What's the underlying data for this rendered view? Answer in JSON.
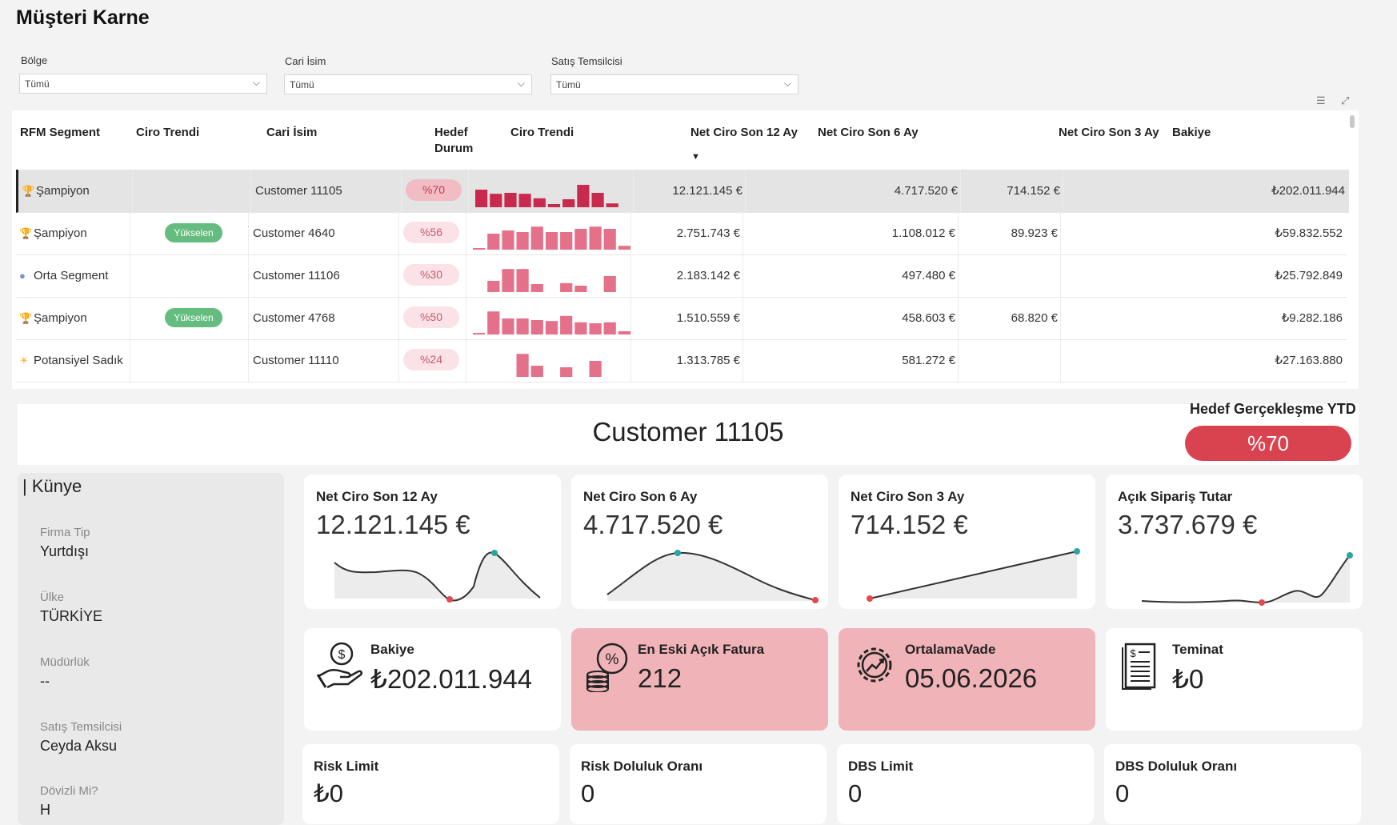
{
  "page": {
    "title": "Müşteri Karne"
  },
  "filters": [
    {
      "label": "Bölge",
      "value": "Tümü"
    },
    {
      "label": "Cari İsim",
      "value": "Tümü"
    },
    {
      "label": "Satış Temsilcisi",
      "value": "Tümü"
    }
  ],
  "table": {
    "headers": {
      "rfm": "RFM Segment",
      "trend1": "Ciro Trendi",
      "cari": "Cari İsim",
      "hedef1": "Hedef",
      "hedef2": "Durum",
      "trend2": "Ciro Trendi",
      "net12": "Net Ciro Son 12 Ay",
      "net6": "Net Ciro Son 6 Ay",
      "net3": "Net Ciro Son 3 Ay",
      "bakiye": "Bakiye"
    },
    "sort_icon": "sort-descending-icon",
    "rows": [
      {
        "segment": "Şampiyon",
        "segment_icon": "trophy-icon",
        "trend_badge": "",
        "cari": "Customer 11105",
        "hedef": "%70",
        "spark": [
          0.55,
          0.42,
          0.45,
          0.42,
          0.28,
          0.1,
          0.25,
          0.7,
          0.45,
          0.12
        ],
        "net12": "12.121.145 €",
        "net6": "4.717.520 €",
        "net3": "714.152 €",
        "bakiye": "₺202.011.944",
        "selected": true
      },
      {
        "segment": "Şampiyon",
        "segment_icon": "trophy-icon",
        "trend_badge": "Yükselen",
        "cari": "Customer 4640",
        "hedef": "%56",
        "spark": [
          0.05,
          0.5,
          0.6,
          0.55,
          0.72,
          0.55,
          0.55,
          0.65,
          0.72,
          0.65,
          0.12
        ],
        "net12": "2.751.743 €",
        "net6": "1.108.012 €",
        "net3": "89.923 €",
        "bakiye": "₺59.832.552",
        "selected": false
      },
      {
        "segment": "Orta Segment",
        "segment_icon": "circle-icon",
        "trend_badge": "",
        "cari": "Customer 11106",
        "hedef": "%30",
        "spark": [
          0,
          0.35,
          0.72,
          0.72,
          0.25,
          0,
          0.28,
          0.2,
          0,
          0.5
        ],
        "net12": "2.183.142 €",
        "net6": "497.480 €",
        "net3": "",
        "bakiye": "₺25.792.849",
        "selected": false
      },
      {
        "segment": "Şampiyon",
        "segment_icon": "trophy-icon",
        "trend_badge": "Yükselen",
        "cari": "Customer 4768",
        "hedef": "%50",
        "spark": [
          0.05,
          0.72,
          0.5,
          0.5,
          0.45,
          0.42,
          0.58,
          0.38,
          0.35,
          0.38,
          0.1
        ],
        "net12": "1.510.559 €",
        "net6": "458.603 €",
        "net3": "68.820 €",
        "bakiye": "₺9.282.186",
        "selected": false
      },
      {
        "segment": "Potansiyel Sadık",
        "segment_icon": "sun-icon",
        "trend_badge": "",
        "cari": "Customer 11110",
        "hedef": "%24",
        "spark": [
          0,
          0,
          0,
          0.72,
          0.35,
          0,
          0.3,
          0,
          0.5,
          0
        ],
        "net12": "1.313.785 €",
        "net6": "581.272 €",
        "net3": "",
        "bakiye": "₺27.163.880",
        "selected": false
      }
    ]
  },
  "detail": {
    "customer": "Customer 11105",
    "hedef_title": "Hedef Gerçekleşme YTD",
    "hedef_value": "%70",
    "kunye_title": "| Künye",
    "kunye": [
      {
        "label": "Firma Tip",
        "value": "Yurtdışı"
      },
      {
        "label": "Ülke",
        "value": "TÜRKİYE"
      },
      {
        "label": "Müdürlük",
        "value": "--"
      },
      {
        "label": "Satış Temsilcisi",
        "value": "Ceyda Aksu"
      },
      {
        "label": "Dövizli Mi?",
        "value": "H"
      }
    ],
    "kpis": [
      {
        "title": "Net Ciro Son 12 Ay",
        "value": "12.121.145 €"
      },
      {
        "title": "Net Ciro Son 6 Ay",
        "value": "4.717.520 €"
      },
      {
        "title": "Net Ciro Son 3 Ay",
        "value": "714.152 €"
      },
      {
        "title": "Açık Sipariş Tutar",
        "value": "3.737.679 €"
      }
    ],
    "icon_cards": [
      {
        "title": "Bakiye",
        "value": "₺202.011.944",
        "icon": "money-hand-icon"
      },
      {
        "title": "En Eski Açık Fatura",
        "value": "212",
        "icon": "percent-coins-icon"
      },
      {
        "title": "OrtalamaVade",
        "value": "05.06.2026",
        "icon": "gear-chart-icon"
      },
      {
        "title": "Teminat",
        "value": "₺0",
        "icon": "document-icon"
      }
    ],
    "limit_cards": [
      {
        "title": "Risk Limit",
        "value": "₺0"
      },
      {
        "title": "Risk Doluluk Oranı",
        "value": "0"
      },
      {
        "title": "DBS Limit",
        "value": "0"
      },
      {
        "title": "DBS Doluluk Oranı",
        "value": "0"
      }
    ]
  },
  "colors": {
    "accent_red": "#d9424f",
    "spark_selected": "#c9294c",
    "spark_normal": "#e5708a",
    "badge_green": "#64bd7e",
    "card_pink": "#f0b4b8"
  }
}
